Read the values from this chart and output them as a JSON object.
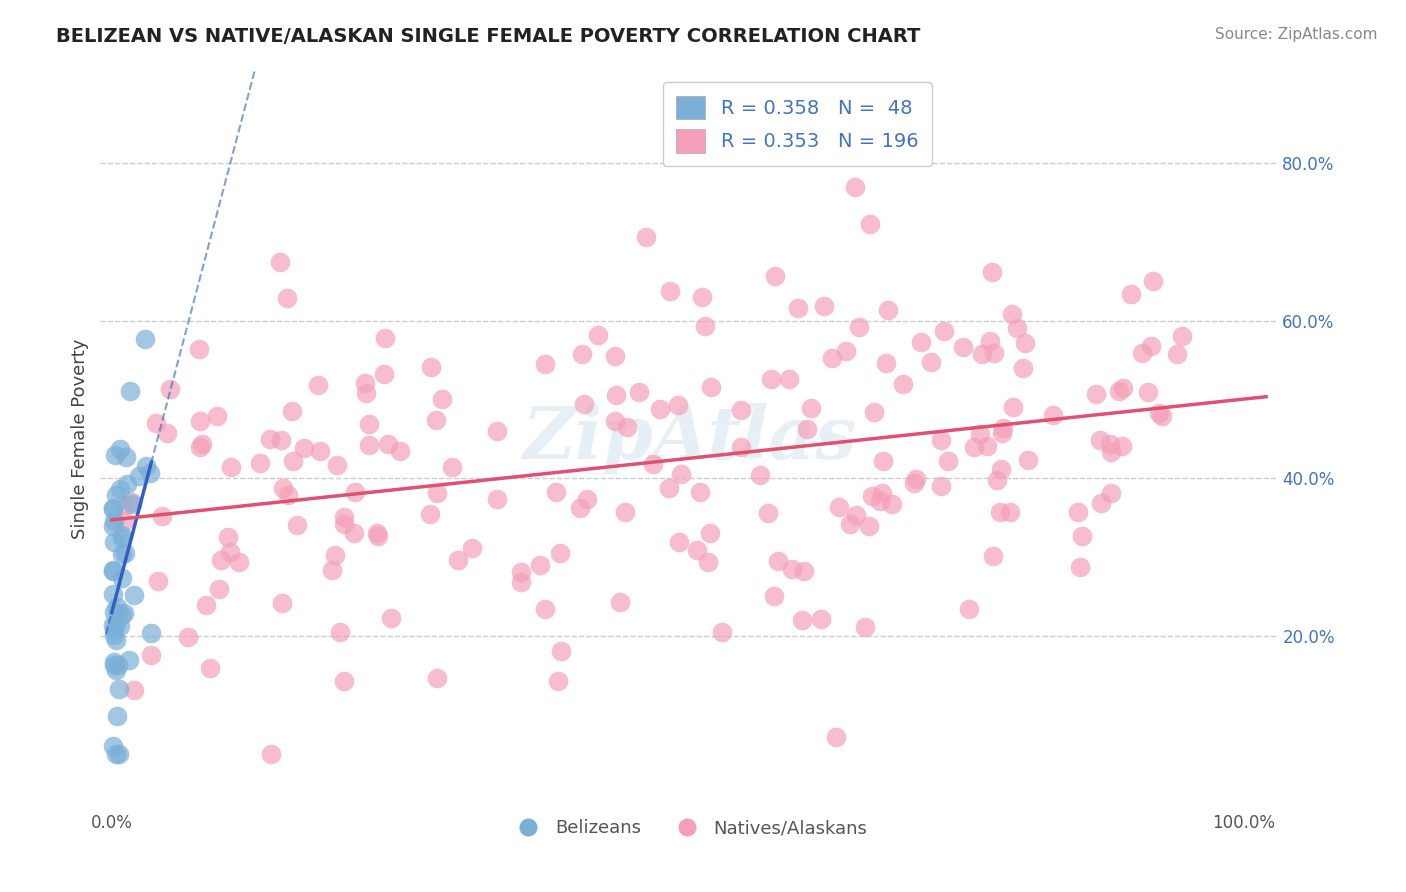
{
  "title": "BELIZEAN VS NATIVE/ALASKAN SINGLE FEMALE POVERTY CORRELATION CHART",
  "source": "Source: ZipAtlas.com",
  "ylabel": "Single Female Poverty",
  "belizean_color": "#7ab0d8",
  "native_color": "#f4a0b8",
  "trendline_blue": "#3060c0",
  "trendline_pink": "#e05070",
  "watermark": "ZipAtlas",
  "background_color": "#ffffff",
  "grid_color": "#cccccc",
  "belizean_R": 0.358,
  "belizean_N": 48,
  "native_R": 0.353,
  "native_N": 196
}
